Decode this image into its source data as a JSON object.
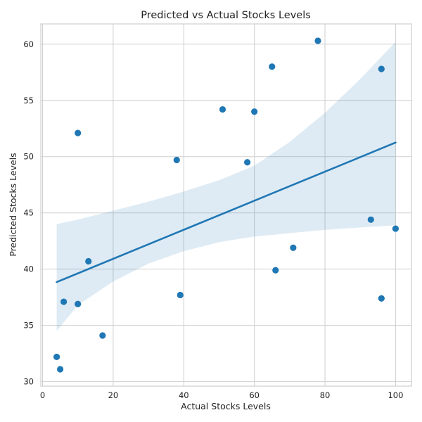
{
  "chart_data": {
    "type": "scatter",
    "title": "Predicted vs Actual Stocks Levels",
    "xlabel": "Actual Stocks Levels",
    "ylabel": "Predicted Stocks Levels",
    "xlim": [
      -0.5,
      104.5
    ],
    "ylim": [
      29.6,
      61.8
    ],
    "xticks": [
      0,
      20,
      40,
      60,
      80,
      100
    ],
    "yticks": [
      30,
      35,
      40,
      45,
      50,
      55,
      60
    ],
    "grid": true,
    "points": [
      {
        "x": 4,
        "y": 32.2
      },
      {
        "x": 5,
        "y": 31.1
      },
      {
        "x": 6,
        "y": 37.1
      },
      {
        "x": 10,
        "y": 36.9
      },
      {
        "x": 10,
        "y": 52.1
      },
      {
        "x": 13,
        "y": 40.7
      },
      {
        "x": 17,
        "y": 34.1
      },
      {
        "x": 38,
        "y": 49.7
      },
      {
        "x": 39,
        "y": 37.7
      },
      {
        "x": 51,
        "y": 54.2
      },
      {
        "x": 58,
        "y": 49.5
      },
      {
        "x": 60,
        "y": 54.0
      },
      {
        "x": 65,
        "y": 58.0
      },
      {
        "x": 66,
        "y": 39.9
      },
      {
        "x": 71,
        "y": 41.9
      },
      {
        "x": 78,
        "y": 60.3
      },
      {
        "x": 93,
        "y": 44.4
      },
      {
        "x": 96,
        "y": 57.8
      },
      {
        "x": 96,
        "y": 37.4
      },
      {
        "x": 100,
        "y": 43.6
      }
    ],
    "regression_line": [
      {
        "x": 4,
        "y": 38.85
      },
      {
        "x": 100,
        "y": 51.25
      }
    ],
    "confidence_band": {
      "x": [
        4,
        10,
        20,
        30,
        40,
        50,
        60,
        70,
        80,
        90,
        100
      ],
      "lower": [
        34.5,
        36.8,
        38.9,
        40.5,
        41.6,
        42.4,
        42.9,
        43.2,
        43.5,
        43.7,
        43.9
      ],
      "upper": [
        44.0,
        44.4,
        45.2,
        46.0,
        46.9,
        47.9,
        49.2,
        51.3,
        53.9,
        56.9,
        60.2
      ]
    },
    "colors": {
      "points": "#1f77b4",
      "line": "#1f77b4",
      "band": "#1f77b4"
    }
  }
}
